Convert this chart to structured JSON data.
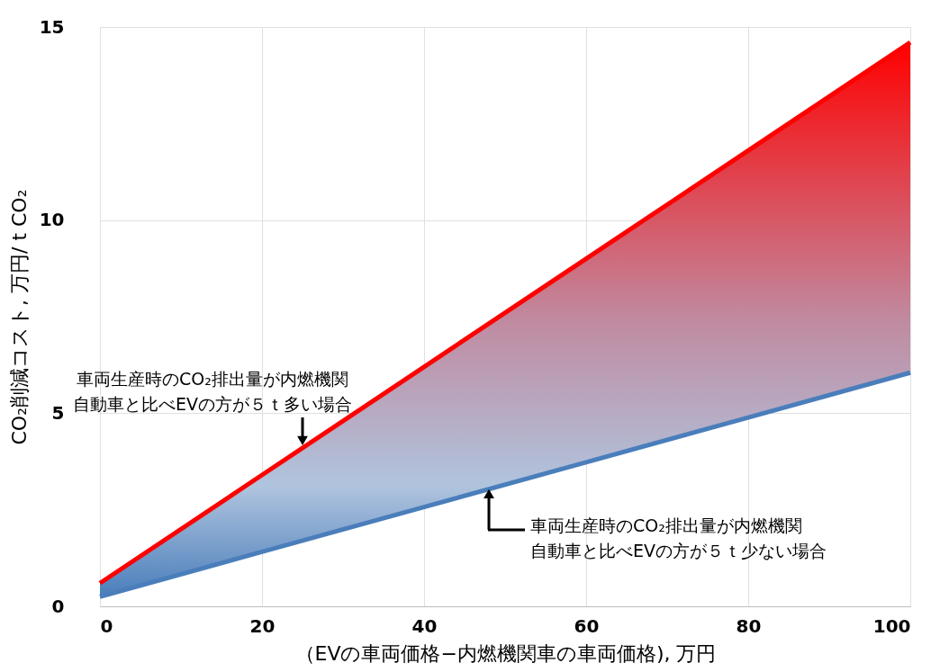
{
  "chart_data": {
    "type": "line",
    "xlabel": "（EVの車両価格−内燃機関車の車両価格), 万円",
    "ylabel": "CO₂削減コスト, 万円/ t CO₂",
    "x": [
      0,
      20,
      40,
      60,
      80,
      100
    ],
    "series": [
      {
        "color": "#ff0000",
        "values": [
          0.6,
          3.4,
          6.2,
          9.0,
          11.8,
          14.6
        ],
        "lower": [
          0.25,
          1.41,
          2.57,
          3.73,
          4.89,
          6.05
        ],
        "upper": [
          0.6,
          3.4,
          6.2,
          9.0,
          11.8,
          14.6
        ]
      },
      {
        "color": "#4a7ebb",
        "values": [
          0.25,
          1.41,
          2.57,
          3.73,
          4.89,
          6.05
        ]
      }
    ],
    "xlim": [
      0,
      100
    ],
    "xticks": [
      0,
      20,
      40,
      60,
      80,
      100
    ],
    "ylim": [
      0,
      15
    ],
    "yticks": [
      0,
      5,
      10,
      15
    ],
    "grid": true,
    "marker": "none",
    "line_style": "solid",
    "annotations": [
      {
        "text": "車両生産時のCO₂排出量が内燃機関自動車と比べEVの方が５ｔ多い場合",
        "x": 25,
        "y": 4.1
      },
      {
        "text": "車両生産時のCO₂排出量が内燃機関自動車と比べEVの方が５ｔ少ない場合",
        "x": 48,
        "y": 3.1
      }
    ]
  }
}
